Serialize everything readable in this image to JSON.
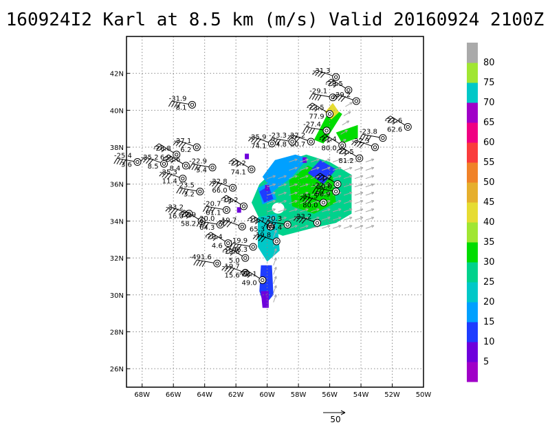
{
  "title": "160924I2 Karl at 8.5 km (m/s) Valid 20160924 2100Z",
  "map": {
    "lon_range": [
      -69.0,
      -50.0
    ],
    "lat_range": [
      25.0,
      44.0
    ],
    "lon_ticks": [
      -68,
      -66,
      -64,
      -62,
      -60,
      -58,
      -56,
      -54,
      -52,
      -50
    ],
    "lon_labels": [
      "68W",
      "66W",
      "64W",
      "62W",
      "60W",
      "58W",
      "56W",
      "54W",
      "52W",
      "50W"
    ],
    "lat_ticks": [
      26,
      28,
      30,
      32,
      34,
      36,
      38,
      40,
      42
    ],
    "lat_labels": [
      "26N",
      "28N",
      "30N",
      "32N",
      "34N",
      "36N",
      "38N",
      "40N",
      "42N"
    ],
    "grid": "dotted"
  },
  "colorbar": {
    "labels": [
      "5",
      "10",
      "15",
      "20",
      "25",
      "30",
      "35",
      "40",
      "45",
      "50",
      "55",
      "60",
      "65",
      "70",
      "75",
      "80"
    ],
    "colors": [
      "#a000c8",
      "#6e00dc",
      "#1e3cff",
      "#00a0ff",
      "#00c8c8",
      "#00d28c",
      "#00dc00",
      "#a0e632",
      "#e6dc32",
      "#e6af2d",
      "#f08228",
      "#fa3c3c",
      "#f00082",
      "#a000c8",
      "#00c8c8",
      "#a0e632",
      "#aaaaaa"
    ]
  },
  "reference_vector": {
    "label": "50"
  },
  "observations": [
    {
      "lon": -55.6,
      "lat": 41.8,
      "temp": "-31.3",
      "val": ""
    },
    {
      "lon": -54.8,
      "lat": 41.1,
      "temp": "-29.5",
      "val": ""
    },
    {
      "lon": -55.8,
      "lat": 40.7,
      "temp": "-29.1",
      "val": ""
    },
    {
      "lon": -54.3,
      "lat": 40.5,
      "temp": "-29.2",
      "val": ""
    },
    {
      "lon": -56.0,
      "lat": 39.8,
      "temp": "-23.5",
      "val": "77.9"
    },
    {
      "lon": -56.2,
      "lat": 38.9,
      "temp": "-27.4",
      "val": ""
    },
    {
      "lon": -57.2,
      "lat": 38.3,
      "temp": "-22.2",
      "val": "80.7"
    },
    {
      "lon": -55.2,
      "lat": 38.1,
      "temp": "-21.4",
      "val": "80.0"
    },
    {
      "lon": -58.4,
      "lat": 38.3,
      "temp": "-23.3",
      "val": "74.8"
    },
    {
      "lon": -59.7,
      "lat": 38.2,
      "temp": "-25.9",
      "val": "74.1"
    },
    {
      "lon": -51.0,
      "lat": 39.1,
      "temp": "-21.6",
      "val": "62.6"
    },
    {
      "lon": -52.6,
      "lat": 38.5,
      "temp": "-23.8",
      "val": ""
    },
    {
      "lon": -53.1,
      "lat": 38.0,
      "temp": "-22.3",
      "val": ""
    },
    {
      "lon": -54.1,
      "lat": 37.4,
      "temp": "-21.5",
      "val": "81.2"
    },
    {
      "lon": -64.8,
      "lat": 40.3,
      "temp": "-31.9",
      "val": "8.1"
    },
    {
      "lon": -64.5,
      "lat": 38.0,
      "temp": "-27.1",
      "val": "6.2"
    },
    {
      "lon": -65.8,
      "lat": 37.6,
      "temp": "-26.8",
      "val": "6.9"
    },
    {
      "lon": -68.3,
      "lat": 37.2,
      "temp": "-25.4",
      "val": "3.6"
    },
    {
      "lon": -66.6,
      "lat": 37.1,
      "temp": "-25.2",
      "val": "8.5"
    },
    {
      "lon": -65.2,
      "lat": 37.0,
      "temp": "-23.6",
      "val": "8.4"
    },
    {
      "lon": -63.5,
      "lat": 36.9,
      "temp": "-22.9",
      "val": "5.4"
    },
    {
      "lon": -65.4,
      "lat": 36.3,
      "temp": "-25.3",
      "val": "11.4"
    },
    {
      "lon": -61.0,
      "lat": 36.8,
      "temp": "-21.2",
      "val": "74.1"
    },
    {
      "lon": -64.3,
      "lat": 35.6,
      "temp": "-23.5",
      "val": "3.2"
    },
    {
      "lon": -62.2,
      "lat": 35.8,
      "temp": "-22.8",
      "val": "66.0"
    },
    {
      "lon": -55.5,
      "lat": 36.0,
      "temp": "-21.2",
      "val": "50.0"
    },
    {
      "lon": -55.6,
      "lat": 35.6,
      "temp": "-22.3",
      "val": "50.9"
    },
    {
      "lon": -56.4,
      "lat": 35.0,
      "temp": "-21.5",
      "val": "80.0"
    },
    {
      "lon": -61.5,
      "lat": 34.8,
      "temp": "-19.2",
      "val": ""
    },
    {
      "lon": -62.6,
      "lat": 34.6,
      "temp": "-20.7",
      "val": "61.1"
    },
    {
      "lon": -65.0,
      "lat": 34.4,
      "temp": "-23.2",
      "val": "16.0"
    },
    {
      "lon": -64.2,
      "lat": 34.0,
      "temp": "-22.9",
      "val": "58.2"
    },
    {
      "lon": -63.0,
      "lat": 33.8,
      "temp": "-20.0",
      "val": "64.3"
    },
    {
      "lon": -61.6,
      "lat": 33.7,
      "temp": "-19.7",
      "val": ""
    },
    {
      "lon": -59.8,
      "lat": 33.7,
      "temp": "-19.7",
      "val": "65.3"
    },
    {
      "lon": -58.7,
      "lat": 33.8,
      "temp": "-20.3",
      "val": "69.4"
    },
    {
      "lon": -56.8,
      "lat": 33.9,
      "temp": "-23.2",
      "val": ""
    },
    {
      "lon": -62.5,
      "lat": 32.8,
      "temp": "-20.4",
      "val": "4.6"
    },
    {
      "lon": -60.9,
      "lat": 32.6,
      "temp": "-19.9",
      "val": "46.3"
    },
    {
      "lon": -59.4,
      "lat": 32.9,
      "temp": "-19.8",
      "val": ""
    },
    {
      "lon": -61.4,
      "lat": 32.0,
      "temp": "-19.6",
      "val": "5.0"
    },
    {
      "lon": -63.2,
      "lat": 31.7,
      "temp": "-491.6",
      "val": ""
    },
    {
      "lon": -61.4,
      "lat": 31.2,
      "temp": "-19.7",
      "val": "15.6"
    },
    {
      "lon": -60.3,
      "lat": 30.8,
      "temp": "-20.1",
      "val": "49.0"
    }
  ]
}
